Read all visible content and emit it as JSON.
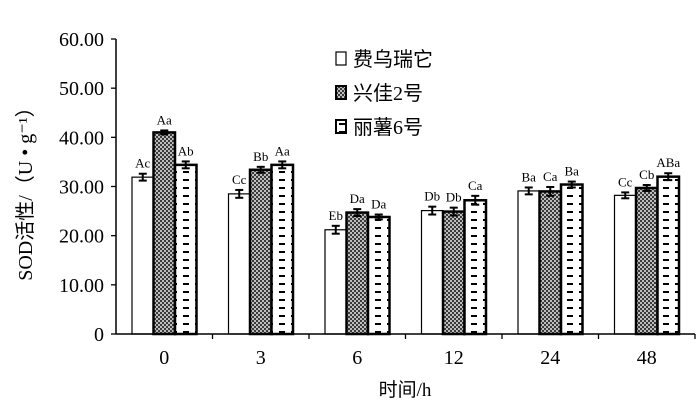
{
  "chart_data": {
    "type": "bar",
    "title": "",
    "xlabel": "时间/h",
    "ylabel": "SOD活性/（U • g⁻¹）",
    "ylim": [
      0,
      60
    ],
    "yticks": [
      "0",
      "10.00",
      "20.00",
      "30.00",
      "40.00",
      "50.00",
      "60.00"
    ],
    "ytick_values": [
      0,
      10,
      20,
      30,
      40,
      50,
      60
    ],
    "categories": [
      "0",
      "3",
      "6",
      "12",
      "24",
      "48"
    ],
    "legend_position": "top-center",
    "series": [
      {
        "name": "费乌瑞它",
        "pattern": "white",
        "values": [
          31.9,
          28.5,
          21.2,
          25.1,
          29.1,
          28.2
        ],
        "errors": [
          0.7,
          0.8,
          0.8,
          0.8,
          0.7,
          0.6
        ],
        "labels": [
          "Ac",
          "Cc",
          "Eb",
          "Db",
          "Ba",
          "Cc"
        ]
      },
      {
        "name": "兴佳2号",
        "pattern": "crosshatch",
        "values": [
          41.0,
          33.4,
          24.7,
          24.9,
          29.0,
          29.7
        ],
        "errors": [
          0.4,
          0.6,
          0.7,
          0.8,
          0.9,
          0.6
        ],
        "labels": [
          "Aa",
          "Bb",
          "Da",
          "Db",
          "Ca",
          "Cb"
        ]
      },
      {
        "name": "丽薯6号",
        "pattern": "dashes",
        "values": [
          34.4,
          34.4,
          23.8,
          27.2,
          30.4,
          32.0
        ],
        "errors": [
          0.7,
          0.7,
          0.5,
          0.9,
          0.6,
          0.7
        ],
        "labels": [
          "Ab",
          "Aa",
          "Da",
          "Ca",
          "Ba",
          "ABa"
        ]
      }
    ],
    "colors": {
      "axis": "#000000",
      "bar_fill_white": "#ffffff",
      "crosshatch_dark": "#3a3a3a"
    }
  }
}
